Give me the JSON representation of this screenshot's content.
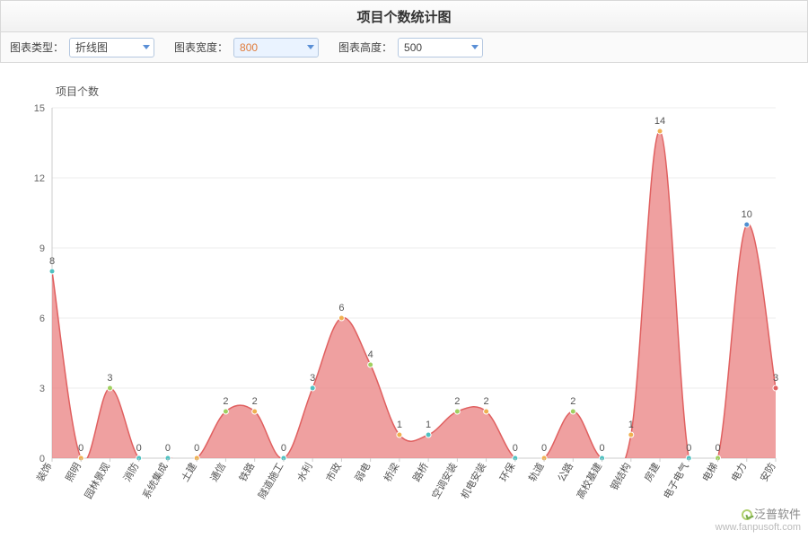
{
  "title": "项目个数统计图",
  "controls": {
    "chart_type_label": "图表类型：",
    "chart_type_value": "折线图",
    "chart_width_label": "图表宽度：",
    "chart_width_value": "800",
    "chart_height_label": "图表高度：",
    "chart_height_value": "500"
  },
  "chart": {
    "type": "area-spline",
    "y_axis_title": "项目个数",
    "ylim": [
      0,
      15
    ],
    "ytick_step": 3,
    "background_color": "#ffffff",
    "grid_color": "#eeeeee",
    "axis_color": "#cccccc",
    "fill_color": "#e98080",
    "fill_opacity": 0.75,
    "line_color": "#e06060",
    "line_width": 1.5,
    "marker_radius": 3,
    "marker_stroke": "#ffffff",
    "label_fontsize": 11,
    "label_color": "#555555",
    "categories": [
      "装饰",
      "照明",
      "园林景观",
      "消防",
      "系统集成",
      "土建",
      "通信",
      "铁路",
      "隧道施工",
      "水利",
      "市政",
      "弱电",
      "桥梁",
      "路桥",
      "空调安装",
      "机电安装",
      "环保",
      "轨道",
      "公路",
      "高校基建",
      "钢结构",
      "房建",
      "电子电气",
      "电梯",
      "电力",
      "安防"
    ],
    "values": [
      8,
      0,
      3,
      0,
      0,
      0,
      2,
      2,
      0,
      3,
      6,
      4,
      1,
      1,
      2,
      2,
      0,
      0,
      2,
      0,
      1,
      14,
      0,
      0,
      10,
      3
    ],
    "marker_colors": [
      "#4fc1c1",
      "#f0b050",
      "#a0d060",
      "#4fc1c1",
      "#4fc1c1",
      "#f0b050",
      "#a0d060",
      "#f0b050",
      "#4fc1c1",
      "#4fc1c1",
      "#f0b050",
      "#a0d060",
      "#f0b050",
      "#4fc1c1",
      "#a0d060",
      "#f0b050",
      "#4fc1c1",
      "#f0b050",
      "#a0d060",
      "#4fc1c1",
      "#f0b050",
      "#f0b050",
      "#4fc1c1",
      "#a0d060",
      "#4f8fd1",
      "#e06060"
    ]
  },
  "watermark": {
    "brand": "泛普软件",
    "url": "www.fanpusoft.com"
  }
}
